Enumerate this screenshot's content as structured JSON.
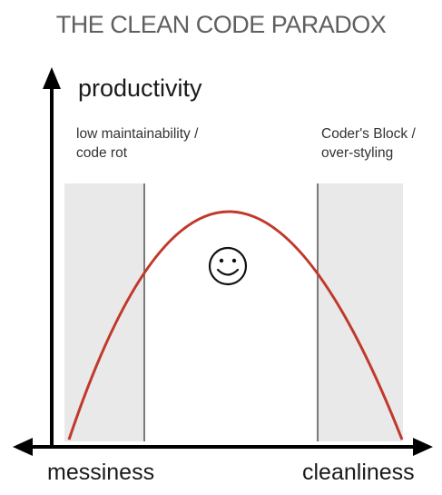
{
  "title": "THE CLEAN CODE PARADOX",
  "axes": {
    "y_label": "productivity",
    "x_left_label": "messiness",
    "x_right_label": "cleanliness"
  },
  "zones": {
    "left": {
      "lines": [
        "low maintainability /",
        "code rot"
      ]
    },
    "right": {
      "lines": [
        "Coder's Block /",
        "over-styling"
      ]
    }
  },
  "colors": {
    "curve": "#c0392b",
    "zone_fill": "#e9e9e9",
    "zone_border": "#7a7a7a",
    "axis": "#000000",
    "title": "#5f5f5f"
  },
  "icons": {
    "center": "smiley-face-icon"
  }
}
